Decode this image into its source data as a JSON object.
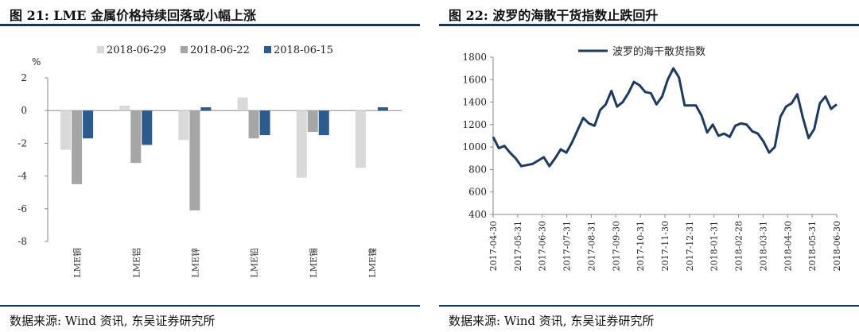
{
  "colors": {
    "rule": "#17375e",
    "series_light": "#d9d9d9",
    "series_mid": "#a6a6a6",
    "series_dark": "#2e5b8d",
    "line": "#1f3a5f"
  },
  "left": {
    "title": "图 21:  LME 金属价格持续回落或小幅上涨",
    "source": "数据来源:  Wind 资讯,  东吴证券研究所"
  },
  "right": {
    "title": "图 22:  波罗的海散干货指数止跌回升",
    "source": "数据来源:  Wind 资讯,  东吴证券研究所"
  },
  "chart_data": [
    {
      "type": "bar",
      "title": "LME 金属价格持续回落或小幅上涨",
      "ylabel": "%",
      "ylim": [
        -8,
        2
      ],
      "yticks": [
        2,
        0,
        -2,
        -4,
        -6,
        -8
      ],
      "legend_position": "top",
      "categories": [
        "LME铜",
        "LME铝",
        "LME锌",
        "LME铅",
        "LME锡",
        "LME镍"
      ],
      "series": [
        {
          "name": "2018-06-29",
          "color": "#d9d9d9",
          "values": [
            -2.4,
            0.3,
            -1.8,
            0.8,
            -4.1,
            -3.5
          ]
        },
        {
          "name": "2018-06-22",
          "color": "#a6a6a6",
          "values": [
            -4.5,
            -3.2,
            -6.1,
            -1.7,
            -1.3,
            0.0
          ]
        },
        {
          "name": "2018-06-15",
          "color": "#2e5b8d",
          "values": [
            -1.7,
            -2.1,
            0.2,
            -1.5,
            -1.5,
            0.2
          ]
        }
      ]
    },
    {
      "type": "line",
      "title": "波罗的海散干货指数止跌回升",
      "legend_position": "top",
      "ylim": [
        400,
        1800
      ],
      "yticks": [
        1800,
        1600,
        1400,
        1200,
        1000,
        800,
        600,
        400
      ],
      "xticks": [
        "2017-04-30",
        "2017-05-31",
        "2017-06-30",
        "2017-07-31",
        "2017-08-31",
        "2017-09-30",
        "2017-10-31",
        "2017-11-30",
        "2017-12-31",
        "2018-01-31",
        "2018-02-28",
        "2018-03-31",
        "2018-04-30",
        "2018-05-31",
        "2018-06-30"
      ],
      "series": [
        {
          "name": "波罗的海干散货指数",
          "color": "#1f3a5f",
          "values": [
            1090,
            990,
            1010,
            950,
            900,
            830,
            840,
            850,
            880,
            910,
            830,
            900,
            980,
            950,
            1040,
            1150,
            1260,
            1210,
            1190,
            1330,
            1380,
            1500,
            1360,
            1400,
            1480,
            1580,
            1550,
            1490,
            1480,
            1380,
            1450,
            1600,
            1700,
            1620,
            1370,
            1370,
            1370,
            1280,
            1130,
            1200,
            1100,
            1120,
            1090,
            1190,
            1210,
            1200,
            1140,
            1120,
            1050,
            950,
            1000,
            1270,
            1360,
            1390,
            1470,
            1260,
            1080,
            1160,
            1390,
            1450,
            1340,
            1380
          ]
        }
      ]
    }
  ]
}
